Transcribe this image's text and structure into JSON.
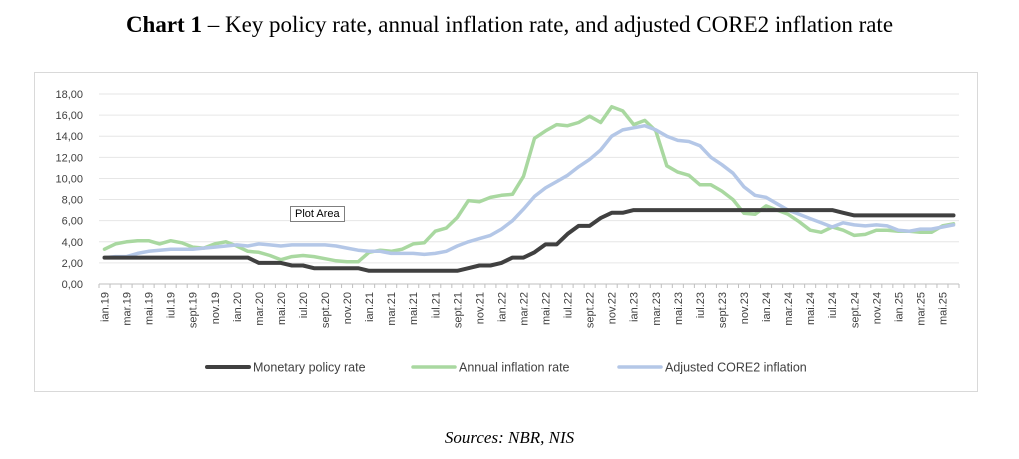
{
  "title_bold": "Chart 1",
  "title_rest": " – Key policy rate, annual inflation rate, and adjusted CORE2 inflation rate",
  "source": "Sources: NBR, NIS",
  "tooltip": "Plot Area",
  "chart_data": {
    "type": "line",
    "title": "Chart 1 – Key policy rate, annual inflation rate, and adjusted CORE2 inflation rate",
    "xlabel": "",
    "ylabel": "",
    "ylim": [
      0,
      18
    ],
    "y_ticks": [
      "0,00",
      "2,00",
      "4,00",
      "6,00",
      "8,00",
      "10,00",
      "12,00",
      "14,00",
      "16,00",
      "18,00"
    ],
    "grid": true,
    "legend_position": "bottom",
    "x": [
      "ian.19",
      "feb.19",
      "mar.19",
      "apr.19",
      "mai.19",
      "iun.19",
      "iul.19",
      "aug.19",
      "sept.19",
      "oct.19",
      "nov.19",
      "dec.19",
      "ian.20",
      "feb.20",
      "mar.20",
      "apr.20",
      "mai.20",
      "iun.20",
      "iul.20",
      "aug.20",
      "sept.20",
      "oct.20",
      "nov.20",
      "dec.20",
      "ian.21",
      "feb.21",
      "mar.21",
      "apr.21",
      "mai.21",
      "iun.21",
      "iul.21",
      "aug.21",
      "sept.21",
      "oct.21",
      "nov.21",
      "dec.21",
      "ian.22",
      "feb.22",
      "mar.22",
      "apr.22",
      "mai.22",
      "iun.22",
      "iul.22",
      "aug.22",
      "sept.22",
      "oct.22",
      "nov.22",
      "dec.22",
      "ian.23",
      "feb.23",
      "mar.23",
      "apr.23",
      "mai.23",
      "iun.23",
      "iul.23",
      "aug.23",
      "sept.23",
      "oct.23",
      "nov.23",
      "dec.23",
      "ian.24",
      "feb.24",
      "mar.24",
      "apr.24",
      "mai.24",
      "iun.24",
      "iul.24",
      "aug.24",
      "sept.24",
      "oct.24",
      "nov.24",
      "dec.24",
      "ian.25",
      "feb.25",
      "mar.25",
      "apr.25",
      "mai.25",
      "iun.25"
    ],
    "x_tick_labels": [
      "ian.19",
      "mar.19",
      "mai.19",
      "iul.19",
      "sept.19",
      "nov.19",
      "ian.20",
      "mar.20",
      "mai.20",
      "iul.20",
      "sept.20",
      "nov.20",
      "ian.21",
      "mar.21",
      "mai.21",
      "iul.21",
      "sept.21",
      "nov.21",
      "ian.22",
      "mar.22",
      "mai.22",
      "iul.22",
      "sept.22",
      "nov.22",
      "ian.23",
      "mar.23",
      "mai.23",
      "iul.23",
      "sept.23",
      "nov.23",
      "ian.24",
      "mar.24",
      "mai.24",
      "iul.24",
      "sept.24",
      "nov.24",
      "ian.25",
      "mar.25",
      "mai.25"
    ],
    "series": [
      {
        "name": "Monetary policy rate",
        "color": "#404040",
        "values": [
          2.5,
          2.5,
          2.5,
          2.5,
          2.5,
          2.5,
          2.5,
          2.5,
          2.5,
          2.5,
          2.5,
          2.5,
          2.5,
          2.5,
          2.0,
          2.0,
          2.0,
          1.75,
          1.75,
          1.5,
          1.5,
          1.5,
          1.5,
          1.5,
          1.25,
          1.25,
          1.25,
          1.25,
          1.25,
          1.25,
          1.25,
          1.25,
          1.25,
          1.5,
          1.75,
          1.75,
          2.0,
          2.5,
          2.5,
          3.0,
          3.75,
          3.75,
          4.75,
          5.5,
          5.5,
          6.25,
          6.75,
          6.75,
          7.0,
          7.0,
          7.0,
          7.0,
          7.0,
          7.0,
          7.0,
          7.0,
          7.0,
          7.0,
          7.0,
          7.0,
          7.0,
          7.0,
          7.0,
          7.0,
          7.0,
          7.0,
          7.0,
          6.75,
          6.5,
          6.5,
          6.5,
          6.5,
          6.5,
          6.5,
          6.5,
          6.5,
          6.5,
          6.5
        ]
      },
      {
        "name": "Annual inflation rate",
        "color": "#a9d8a0",
        "values": [
          3.3,
          3.8,
          4.0,
          4.1,
          4.1,
          3.8,
          4.1,
          3.9,
          3.5,
          3.4,
          3.8,
          4.0,
          3.6,
          3.1,
          3.0,
          2.7,
          2.3,
          2.6,
          2.7,
          2.6,
          2.4,
          2.2,
          2.1,
          2.1,
          3.0,
          3.2,
          3.1,
          3.3,
          3.8,
          3.9,
          5.0,
          5.3,
          6.3,
          7.9,
          7.8,
          8.2,
          8.4,
          8.5,
          10.2,
          13.8,
          14.5,
          15.1,
          15.0,
          15.3,
          15.9,
          15.3,
          16.8,
          16.4,
          15.1,
          15.5,
          14.5,
          11.2,
          10.6,
          10.3,
          9.4,
          9.4,
          8.8,
          8.0,
          6.7,
          6.6,
          7.4,
          7.0,
          6.6,
          5.9,
          5.1,
          4.9,
          5.4,
          5.1,
          4.6,
          4.7,
          5.1,
          5.1,
          5.0,
          5.0,
          4.9,
          4.9,
          5.5,
          5.7
        ]
      },
      {
        "name": "Adjusted CORE2 inflation",
        "color": "#b4c7e7",
        "values": [
          2.5,
          2.6,
          2.6,
          2.9,
          3.1,
          3.2,
          3.3,
          3.3,
          3.3,
          3.4,
          3.5,
          3.6,
          3.7,
          3.6,
          3.8,
          3.7,
          3.6,
          3.7,
          3.7,
          3.7,
          3.7,
          3.6,
          3.4,
          3.2,
          3.1,
          3.1,
          2.9,
          2.9,
          2.9,
          2.8,
          2.9,
          3.1,
          3.6,
          4.0,
          4.3,
          4.6,
          5.2,
          6.0,
          7.1,
          8.3,
          9.1,
          9.7,
          10.3,
          11.1,
          11.8,
          12.7,
          14.0,
          14.6,
          14.8,
          15.0,
          14.6,
          14.0,
          13.6,
          13.5,
          13.1,
          12.0,
          11.3,
          10.5,
          9.2,
          8.4,
          8.2,
          7.6,
          7.0,
          6.6,
          6.2,
          5.8,
          5.4,
          5.8,
          5.6,
          5.5,
          5.6,
          5.5,
          5.1,
          5.0,
          5.2,
          5.2,
          5.4,
          5.6
        ]
      }
    ]
  }
}
